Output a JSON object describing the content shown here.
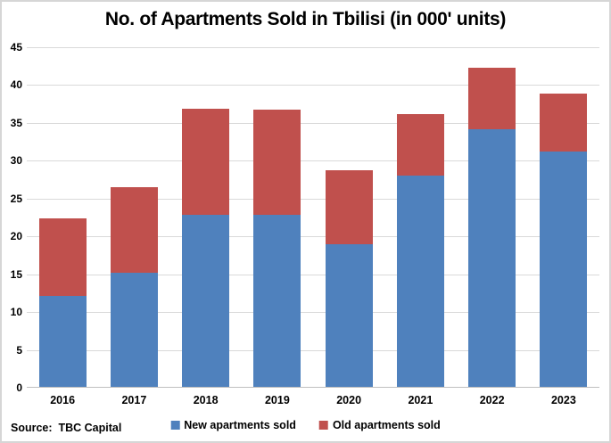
{
  "title": "No. of Apartments Sold in Tbilisi (in 000' units)",
  "source_label": "Source:  TBC Capital",
  "legend": {
    "entries": [
      {
        "label": "New apartments sold",
        "color": "#4F81BD"
      },
      {
        "label": "Old apartments sold",
        "color": "#C0504D"
      }
    ],
    "position": "bottom"
  },
  "colors": {
    "new_series": "#4F81BD",
    "old_series": "#C0504D",
    "gridline": "#D9D9D9",
    "axis_line": "#BFBFBF",
    "frame_border": "#D6D6D6",
    "text": "#000000",
    "background": "#FFFFFF"
  },
  "chart_data": {
    "type": "bar",
    "stacked": true,
    "title": "No. of Apartments Sold in Tbilisi (in 000' units)",
    "categories": [
      "2016",
      "2017",
      "2018",
      "2019",
      "2020",
      "2021",
      "2022",
      "2023"
    ],
    "series": [
      {
        "name": "New apartments sold",
        "color": "#4F81BD",
        "values": [
          12.0,
          15.1,
          22.7,
          22.7,
          18.8,
          27.9,
          34.1,
          31.1
        ]
      },
      {
        "name": "Old apartments sold",
        "color": "#C0504D",
        "values": [
          10.2,
          11.3,
          14.0,
          13.9,
          9.8,
          8.1,
          8.1,
          7.6
        ]
      }
    ],
    "totals": [
      22.2,
      26.4,
      36.7,
      36.6,
      28.6,
      36.0,
      42.2,
      38.7
    ],
    "xlabel": "",
    "ylabel": "",
    "ylim": [
      0,
      45
    ],
    "ytick_step": 5,
    "ytick_labels": [
      "0",
      "5",
      "10",
      "15",
      "20",
      "25",
      "30",
      "35",
      "40",
      "45"
    ],
    "grid": true,
    "legend_position": "bottom",
    "source": "TBC Capital"
  }
}
